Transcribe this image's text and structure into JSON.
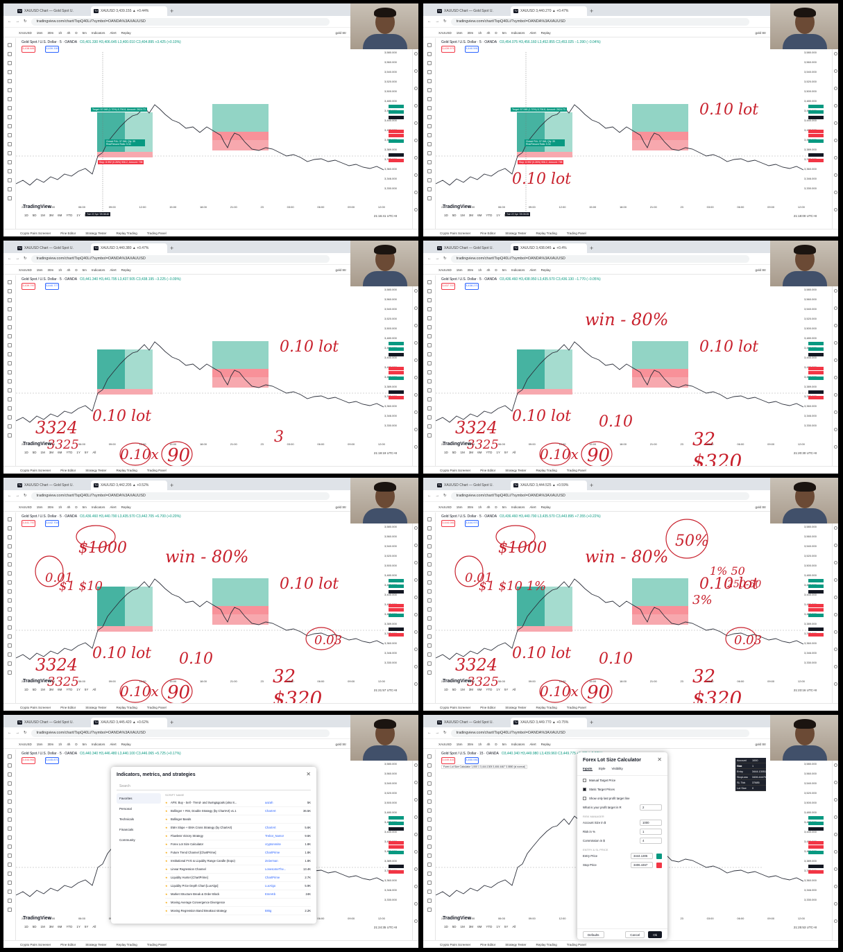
{
  "panels": [
    {
      "tab1": "XAUUSD Chart — Gold Spot U.",
      "tab2": "XAUUSD 3,439.155 ▲ +0.44% ",
      "sell": "3,438.681",
      "buy": "3,439.330",
      "ohlc": "O3,401.330 H3,406.645 L3,400.010 C3,404.895 +3.425 (+0.10%)",
      "time": "21:16:41 UTC+8",
      "ink": []
    },
    {
      "tab1": "XAUUSD Chart — Gold Spot U.",
      "tab2": "XAUUSD 3,440.270 ▲ +0.47% ",
      "sell": "3,439.971",
      "buy": "3,440.591",
      "ohlc": "O3,454.075 H3,456.160 L3,452.855 C3,453.025 −1.390 (−0.04%)",
      "time": "21:18:00 UTC+8",
      "ink": [
        "0.10 lot",
        "0.10 lot"
      ]
    },
    {
      "tab1": "XAUUSD Chart — Gold Spot U.",
      "tab2": "XAUUSD 3,440.380 ▲ +0.47% ",
      "sell": "3,439.797",
      "buy": "3,440.777",
      "ohlc": "O3,441.340 H3,441.795 L3,437.505 C3,438.195 −3.225 (−0.09%)",
      "time": "21:19:19 UTC+8",
      "ink": [
        "0.10 lot",
        "3324",
        "3325",
        "0.10 lot",
        "0.10x",
        "90",
        "3"
      ]
    },
    {
      "tab1": "XAUUSD Chart — Gold Spot U.",
      "tab2": "XAUUSD 3,438.045 ▲ +0.4% ",
      "sell": "3,437.707",
      "buy": "3,438.271",
      "ohlc": "O3,436.460 H3,438.950 L3,435.570 C3,436.130 −1.770 (−0.05%)",
      "time": "21:20:30 UTC+8",
      "ink": [
        "win - 80%",
        "0.10 lot",
        "3324",
        "3325",
        "0.10 lot",
        "0.10",
        "0.10x",
        "90",
        "32",
        "$320"
      ]
    },
    {
      "tab1": "XAUUSD Chart — Gold Spot U.",
      "tab2": "XAUUSD 3,442.205 ▲ +0.52% ",
      "sell": "3,441.797",
      "buy": "3,442.704",
      "ohlc": "O3,436.460 H3,440.790 L3,435.570 C3,442.705 +6.700 (+0.20%)",
      "time": "21:21:57 UTC+8",
      "ink": [
        "win - 80%",
        "$1000",
        "0.01",
        "$1 $10",
        "0.10 lot",
        "0.03",
        "3324",
        "3325",
        "0.10 lot",
        "0.10",
        "0.10x",
        "90",
        "32",
        "$320"
      ]
    },
    {
      "tab1": "XAUUSD Chart — Gold Spot U.",
      "tab2": "XAUUSD 3,444.525 ▲ +0.59% ",
      "sell": "3,444.081",
      "buy": "3,444.971",
      "ohlc": "O3,436.460 H3,440.790 L3,435.570 C3,443.895 +7.355 (+0.22%)",
      "time": "21:23:16 UTC+8",
      "ink": [
        "win - 80%",
        "$1000",
        "0.01",
        "$1 $10 1%",
        "50%",
        "1% 50",
        "250-50",
        "3%",
        "0.10 lot",
        "0.03",
        "3324",
        "3325",
        "0.10 lot",
        "0.10",
        "0.10x",
        "90",
        "32",
        "$320"
      ]
    },
    {
      "tab1": "XAUUSD Chart — Gold Spot U.",
      "tab2": "XAUUSD 3,445.420 ▲ +0.62% ",
      "sell": "3,444.961",
      "buy": "3,445.871",
      "ohlc": "O3,440.340 H3,446.480 L3,440.100 C3,446.065 +5.725 (+0.17%)",
      "time": "21:24:35 UTC+8",
      "ink": []
    },
    {
      "tab1": "XAUUSD Chart — Gold Spot U.",
      "tab2": "XAUUSD 3,449.770 ▲ +0.75% ",
      "sell": "3,449.441",
      "buy": "3,450.061",
      "ohlc": "O3,440.340 H3,449.980 L3,439.960 C3,449.775 +9.435 (+0.28%)",
      "time": "21:25:53 UTC+8",
      "ink": []
    }
  ],
  "common": {
    "url": "tradingview.com/chart/TspQ40Li/?symbol=OANDA%3AXAUUSD",
    "symbol": "XAUUSD",
    "symbol_desc": "Gold Spot / U.S. Dollar · 5 · OANDA",
    "symbol_desc_15": "Gold Spot / U.S. Dollar · 15 · OANDA",
    "intervals": [
      "15m",
      "30m",
      "1h",
      "4h",
      "D",
      "5m"
    ],
    "indicators_label": "Indicators",
    "alert_label": "Alert",
    "replay_label": "Replay",
    "search_hint": "gold Str",
    "brand": "TradingView",
    "ranges": [
      "1D",
      "5D",
      "1M",
      "3M",
      "6M",
      "YTD",
      "1Y",
      "5Y",
      "All"
    ],
    "bottom_tabs": [
      "Crypto Pairs Screener",
      "Pine Editor",
      "Strategy Tester",
      "Replay Trading",
      "Trading Panel"
    ],
    "yaxis": [
      "3,580.000",
      "3,560.000",
      "3,540.000",
      "3,520.000",
      "3,500.000",
      "3,480.000",
      "3,460.000",
      "3,440.000",
      "3,420.000",
      "3,400.000",
      "3,389.000",
      "3,373.000",
      "3,360.000",
      "3,346.000",
      "3,330.000"
    ],
    "xaxis": [
      "22",
      "03:00",
      "06:00",
      "09:00",
      "12:00",
      "15:00",
      "18:00",
      "21:00",
      "23",
      "03:00",
      "06:00",
      "09:00",
      "12:00"
    ],
    "position_target": "Target: 57.948 (1.70%) 5,794.8, Amount: 2624.73",
    "position_pnl": "Closed P&L: 57.948, Qty: 39 Risk/Reward Ratio: 5.34",
    "position_stop": "Stop: 8.992 (0.26%) 906.2, Amount: 798",
    "cursor_time1": "Tue 22 Apr '25  08:40",
    "cursor_time2": "Tue 22 Apr '25  09:25"
  },
  "indicators_dialog": {
    "title": "Indicators, metrics, and strategies",
    "search_placeholder": "Search",
    "categories": [
      "Favorites",
      "Personal",
      "Technicals",
      "Financials",
      "Community"
    ],
    "list_header": "SCRIPT NAME",
    "rows": [
      {
        "name": "AFN: Buy - Sell - Trend- and Swing&goals (also 8...",
        "author": "aazah",
        "likes": "5K"
      },
      {
        "name": "Bollinger + RSI, Double Strategy (by ChartArt) v1.1",
        "author": "ChartArt",
        "likes": "36.5K"
      },
      {
        "name": "Bollinger Bands",
        "author": "",
        "likes": ""
      },
      {
        "name": "EMA Slope + EMA Cross Strategy (by ChartArt)",
        "author": "ChartArt",
        "likes": "5.6K"
      },
      {
        "name": "Flawless Victory Strategy",
        "author": "Trebor_Namor",
        "likes": "9.6K"
      },
      {
        "name": "Forex Lot Size Calculator",
        "author": "cryptonnnite",
        "likes": "1.8K"
      },
      {
        "name": "Future Trend Channel [ChartPrime]",
        "author": "ChartPrime",
        "likes": "1.8K"
      },
      {
        "name": "Institutional FVG & Liquidity Range Candle (Expo)",
        "author": "Zeiierman",
        "likes": "1.8K"
      },
      {
        "name": "Linear Regression Channel",
        "author": "LonesomeThe...",
        "likes": "13.4K"
      },
      {
        "name": "Liquidity Hunter [ChartPrime]",
        "author": "ChartPrime",
        "likes": "2.7K"
      },
      {
        "name": "Liquidity Price Depth Chart [LuxAlgo]",
        "author": "LuxAlgo",
        "likes": "5.9K"
      },
      {
        "name": "Market Structure Break & Order Block",
        "author": "EmreKb",
        "likes": "24K"
      },
      {
        "name": "Moving Average Convergence Divergence",
        "author": "",
        "likes": ""
      },
      {
        "name": "Moving Regression Band Breakout strategy",
        "author": "BrBg",
        "likes": "2.2K"
      }
    ]
  },
  "calc_dialog": {
    "title": "Forex Lot Size Calculator",
    "tabs": [
      "Inputs",
      "Style",
      "Visibility"
    ],
    "opt1": "Manual Target Price",
    "opt2": "Static Target Prices",
    "opt3": "Show only last profit target line",
    "profit_target_label": "What is your profit target in R",
    "profit_target_value": "2",
    "section1": "RISK MANAGER",
    "account_label": "Account Size in $",
    "account_value": "1000",
    "risk_label": "Risk in %",
    "risk_value": "1",
    "commission_label": "Commission in $",
    "commission_value": "4",
    "section2": "ENTRY & SL PRICE",
    "entry_label": "Entry Price",
    "entry_value": "3444.1305",
    "stop_label": "Stop Price",
    "stop_value": "3406.4467",
    "defaults_label": "Defaults",
    "cancel_label": "Cancel",
    "ok_label": "Ok",
    "legend": "Forex Lot Size Calculator  1,000  1  3,444.1305  3,406.4467  3.0850  (sl normal)",
    "table": [
      [
        "Account Size",
        "1000"
      ],
      [
        "Risk",
        "1"
      ],
      [
        "Entry",
        "3444.13051"
      ],
      [
        "StopLoss",
        "3406.44470"
      ],
      [
        "SL Tick",
        "37685"
      ],
      [
        "Lot Size",
        "0"
      ]
    ]
  },
  "colors": {
    "green": "#089981",
    "red": "#f23645",
    "ink": "#c8202c",
    "zone_green": "#7fcdbb",
    "zone_red": "#f7a8ae"
  }
}
